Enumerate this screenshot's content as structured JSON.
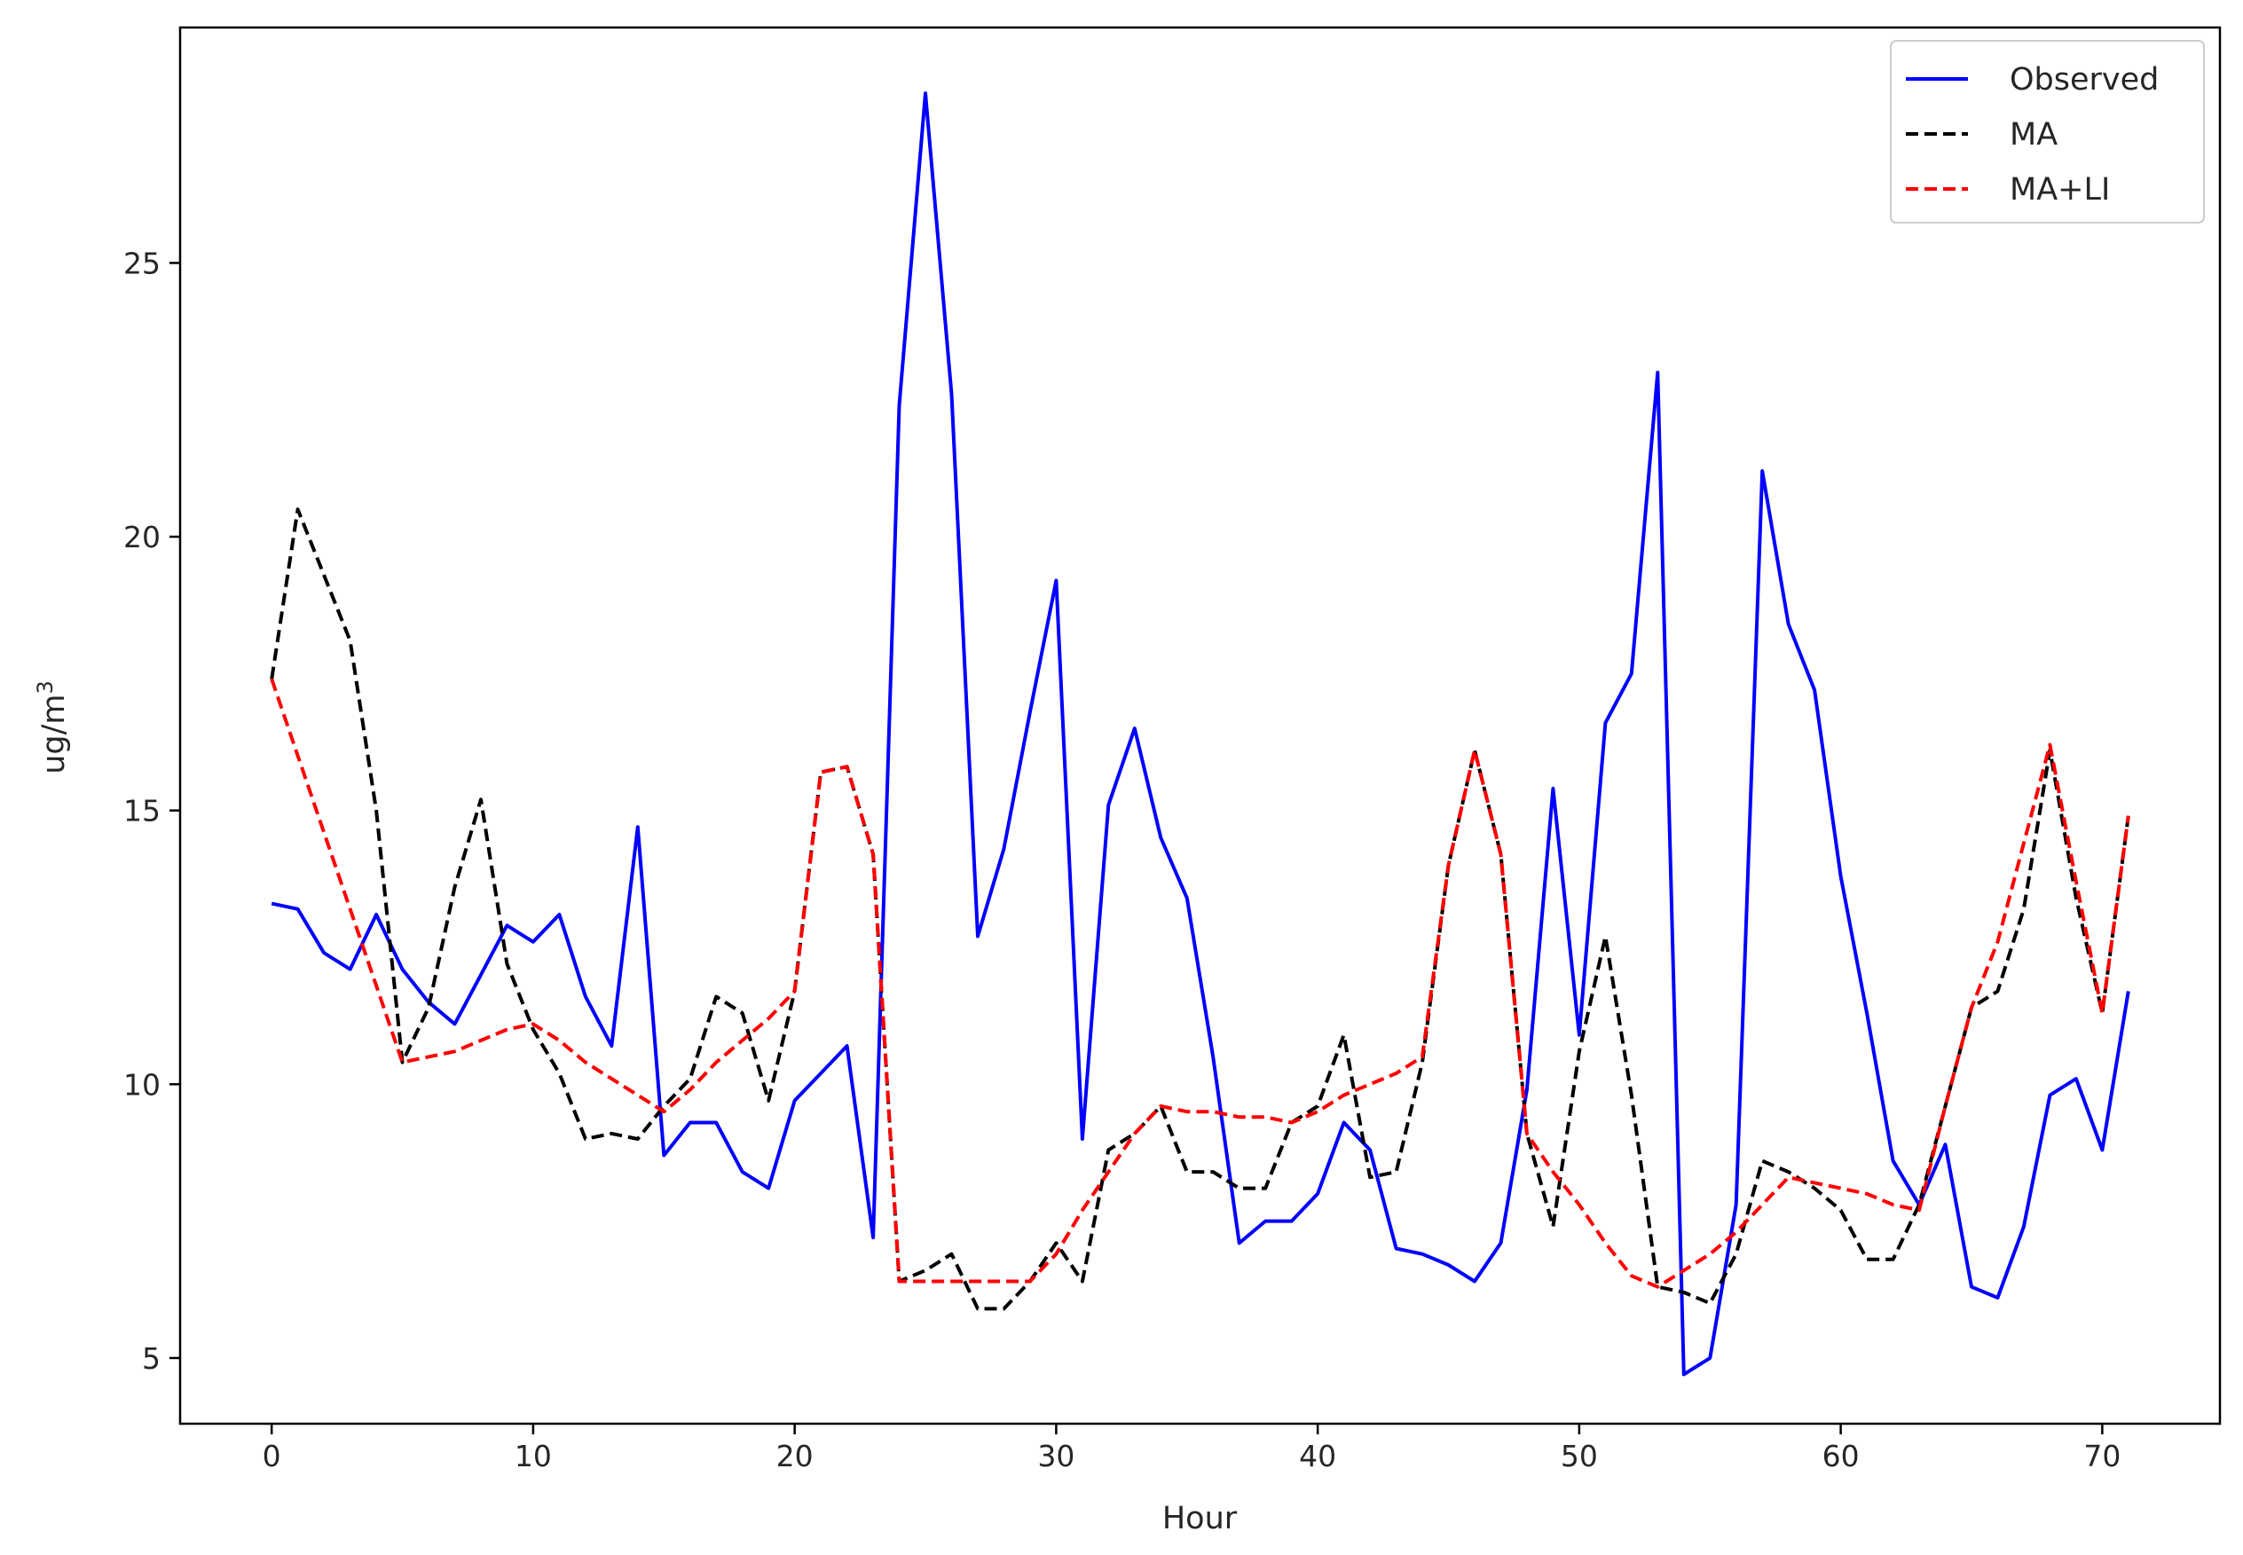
{
  "chart_data": {
    "type": "line",
    "xlabel": "Hour",
    "ylabel": "ug/m",
    "ylabel_superscript": "3",
    "x_ticks": [
      "0",
      "10",
      "20",
      "30",
      "40",
      "50",
      "60",
      "70"
    ],
    "y_ticks": [
      "5",
      "10",
      "15",
      "20",
      "25"
    ],
    "xlim": [
      -3.5,
      74.5
    ],
    "ylim": [
      3.8,
      29.3
    ],
    "grid": false,
    "legend_position": "top-right",
    "series": [
      {
        "name": "Observed",
        "color": "#0000ff",
        "dash": "solid",
        "values": [
          13.3,
          13.2,
          12.4,
          12.1,
          13.1,
          12.1,
          11.5,
          11.1,
          12.0,
          12.9,
          12.6,
          13.1,
          11.6,
          10.7,
          14.7,
          8.7,
          9.3,
          9.3,
          8.4,
          8.1,
          9.7,
          10.2,
          10.7,
          7.2,
          22.4,
          28.1,
          22.6,
          12.7,
          14.3,
          16.8,
          19.2,
          9.0,
          15.1,
          16.5,
          14.5,
          13.4,
          10.5,
          7.1,
          7.5,
          7.5,
          8.0,
          9.3,
          8.8,
          7.0,
          6.9,
          6.7,
          6.4,
          7.1,
          9.9,
          15.4,
          10.9,
          16.6,
          17.5,
          23.0,
          4.7,
          5.0,
          7.8,
          21.2,
          18.4,
          17.2,
          13.8,
          11.3,
          8.6,
          7.8,
          8.9,
          6.3,
          6.1,
          7.4,
          9.8,
          10.1,
          8.8,
          11.7
        ]
      },
      {
        "name": "MA",
        "color": "#000000",
        "dash": "dashed",
        "values": [
          17.4,
          20.5,
          19.3,
          18.1,
          15.0,
          10.4,
          11.4,
          13.6,
          15.2,
          12.2,
          11.0,
          10.2,
          9.0,
          9.1,
          9.0,
          9.6,
          10.1,
          11.6,
          11.3,
          9.7,
          11.7,
          15.7,
          15.8,
          14.2,
          6.4,
          6.6,
          6.9,
          5.9,
          5.9,
          6.4,
          7.1,
          6.4,
          8.8,
          9.1,
          9.6,
          8.4,
          8.4,
          8.1,
          8.1,
          9.3,
          9.6,
          10.9,
          8.3,
          8.4,
          10.4,
          14.0,
          16.1,
          14.2,
          9.1,
          7.4,
          10.6,
          12.7,
          9.8,
          6.3,
          6.2,
          6.0,
          6.9,
          8.6,
          8.4,
          8.1,
          7.7,
          6.8,
          6.8,
          7.8,
          9.6,
          11.4,
          11.7,
          13.2,
          16.1,
          13.4,
          11.3,
          14.9
        ]
      },
      {
        "name": "MA+LI",
        "color": "#ff0000",
        "dash": "dashed",
        "values": [
          17.4,
          16.0,
          14.6,
          13.2,
          11.8,
          10.4,
          10.5,
          10.6,
          10.8,
          11.0,
          11.1,
          10.8,
          10.4,
          10.1,
          9.8,
          9.5,
          9.9,
          10.4,
          10.8,
          11.2,
          11.7,
          15.7,
          15.8,
          14.2,
          6.4,
          6.4,
          6.4,
          6.4,
          6.4,
          6.4,
          6.9,
          7.7,
          8.4,
          9.1,
          9.6,
          9.5,
          9.5,
          9.4,
          9.4,
          9.3,
          9.5,
          9.8,
          10.0,
          10.2,
          10.5,
          14.0,
          16.1,
          14.2,
          9.1,
          8.4,
          7.8,
          7.1,
          6.5,
          6.3,
          6.6,
          6.9,
          7.3,
          7.8,
          8.3,
          8.2,
          8.1,
          8.0,
          7.8,
          7.7,
          9.6,
          11.4,
          12.6,
          14.4,
          16.2,
          13.7,
          11.3,
          14.9
        ]
      }
    ]
  }
}
